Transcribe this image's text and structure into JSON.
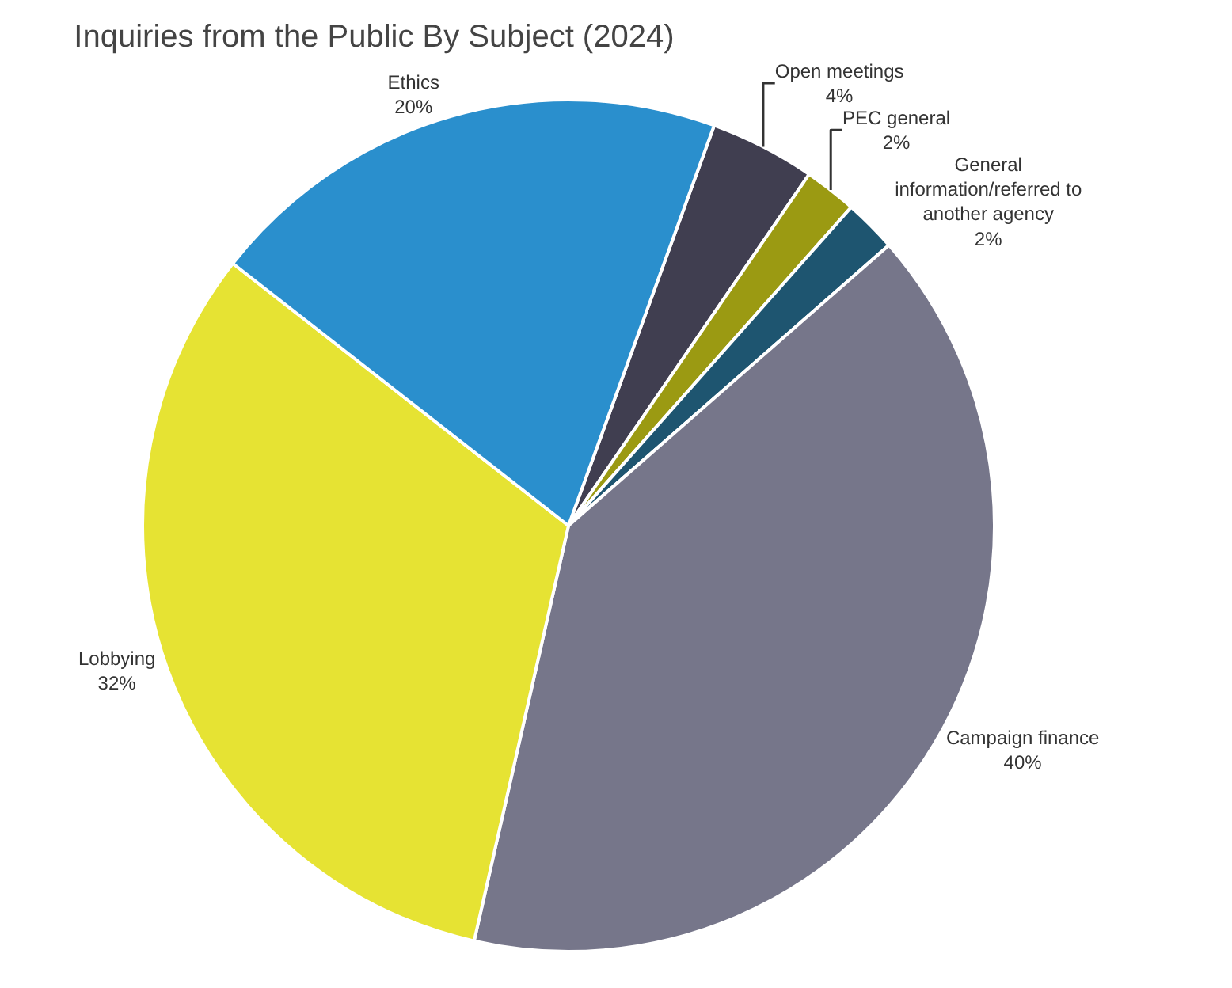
{
  "chart_data": {
    "type": "pie",
    "title": "Inquiries from the Public By Subject (2024)",
    "categories": [
      "Open meetings",
      "PEC general",
      "General information/referred to another agency",
      "Campaign finance",
      "Lobbying",
      "Ethics"
    ],
    "values": [
      4,
      2,
      2,
      40,
      32,
      20
    ],
    "value_labels": [
      "4%",
      "2%",
      "2%",
      "40%",
      "32%",
      "20%"
    ],
    "colors": [
      "#403e50",
      "#9b9a12",
      "#1e5570",
      "#76768a",
      "#e6e333",
      "#2a8fcd"
    ],
    "legend": false
  }
}
